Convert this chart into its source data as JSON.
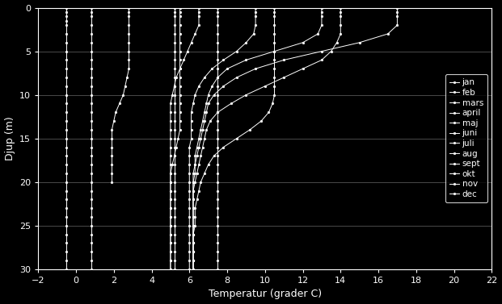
{
  "xlabel": "Temperatur (grader C)",
  "ylabel": "Djup (m)",
  "xlim": [
    -2,
    22
  ],
  "ylim": [
    30,
    0
  ],
  "xticks": [
    -2,
    0,
    2,
    4,
    6,
    8,
    10,
    12,
    14,
    16,
    18,
    20,
    22
  ],
  "yticks": [
    0,
    5,
    10,
    15,
    20,
    25,
    30
  ],
  "background_color": "#000000",
  "legend_labels": [
    "jan",
    "feb",
    "mars",
    "april",
    "maj",
    "juni",
    "juli",
    "aug",
    "sept",
    "okt",
    "nov",
    "dec"
  ],
  "months": {
    "jan": {
      "depth": [
        0,
        0.5,
        1,
        1.5,
        2,
        3,
        4,
        5,
        6,
        7,
        8,
        9,
        10,
        11,
        12,
        13,
        14,
        15,
        16,
        17,
        18,
        19,
        20,
        21,
        22,
        23,
        24,
        25,
        26,
        27,
        28,
        29,
        30
      ],
      "temp": [
        -0.5,
        -0.5,
        -0.5,
        -0.5,
        -0.5,
        -0.5,
        -0.5,
        -0.5,
        -0.5,
        -0.5,
        -0.5,
        -0.5,
        -0.5,
        -0.5,
        -0.5,
        -0.5,
        -0.5,
        -0.5,
        -0.5,
        -0.5,
        -0.5,
        -0.5,
        -0.5,
        -0.5,
        -0.5,
        -0.5,
        -0.5,
        -0.5,
        -0.5,
        -0.5,
        -0.5,
        -0.5,
        -0.5
      ]
    },
    "feb": {
      "depth": [
        0,
        0.5,
        1,
        2,
        3,
        4,
        5,
        6,
        7,
        8,
        9,
        10,
        11,
        12,
        13,
        14,
        15,
        16,
        17,
        18,
        19,
        20,
        21,
        22,
        23,
        24,
        25,
        26,
        27,
        28,
        29,
        30
      ],
      "temp": [
        0.8,
        0.8,
        0.8,
        0.8,
        0.8,
        0.8,
        0.8,
        0.8,
        0.8,
        0.8,
        0.8,
        0.8,
        0.8,
        0.8,
        0.8,
        0.8,
        0.8,
        0.8,
        0.8,
        0.8,
        0.8,
        0.8,
        0.8,
        0.8,
        0.8,
        0.8,
        0.8,
        0.8,
        0.8,
        0.8,
        0.8,
        0.8
      ]
    },
    "mars": {
      "depth": [
        0,
        0.5,
        1,
        2,
        3,
        4,
        5,
        6,
        7,
        8,
        9,
        10,
        11,
        12,
        13,
        14,
        15,
        16,
        17,
        18,
        19,
        20
      ],
      "temp": [
        2.8,
        2.8,
        2.8,
        2.8,
        2.8,
        2.8,
        2.8,
        2.8,
        2.8,
        2.7,
        2.6,
        2.5,
        2.3,
        2.1,
        2.0,
        1.9,
        1.9,
        1.9,
        1.9,
        1.9,
        1.9,
        1.9
      ]
    },
    "april": {
      "depth": [
        0,
        0.5,
        1,
        2,
        3,
        4,
        5,
        6,
        7,
        8,
        9,
        10,
        11,
        12,
        13,
        14,
        15,
        16,
        17,
        18,
        19,
        20,
        21,
        22,
        23,
        24,
        25,
        26,
        27,
        28,
        29,
        30
      ],
      "temp": [
        5.5,
        5.5,
        5.5,
        5.5,
        5.5,
        5.5,
        5.5,
        5.5,
        5.5,
        5.5,
        5.5,
        5.5,
        5.5,
        5.5,
        5.5,
        5.5,
        5.4,
        5.3,
        5.2,
        5.1,
        5.0,
        5.0,
        5.0,
        5.0,
        5.0,
        5.0,
        5.0,
        5.0,
        5.0,
        5.0,
        5.0,
        5.0
      ]
    },
    "maj": {
      "depth": [
        0,
        0.5,
        1,
        2,
        3,
        4,
        5,
        6,
        7,
        8,
        9,
        10,
        11,
        12,
        13,
        14,
        15,
        16,
        17,
        18,
        19,
        20,
        21,
        22,
        23,
        24,
        25,
        26,
        27,
        28,
        29,
        30
      ],
      "temp": [
        6.5,
        6.5,
        6.5,
        6.5,
        6.3,
        6.1,
        5.9,
        5.7,
        5.5,
        5.3,
        5.2,
        5.1,
        5.0,
        5.0,
        5.0,
        5.0,
        5.0,
        5.0,
        5.0,
        5.0,
        5.0,
        5.0,
        5.0,
        5.0,
        5.0,
        5.0,
        5.0,
        5.0,
        5.0,
        5.0,
        5.0,
        5.0
      ]
    },
    "juni": {
      "depth": [
        0,
        0.5,
        1,
        2,
        3,
        4,
        5,
        6,
        7,
        8,
        9,
        10,
        11,
        12,
        13,
        14,
        15,
        16,
        17,
        18,
        19,
        20,
        21,
        22,
        23,
        24,
        25,
        26,
        27,
        28,
        29,
        30
      ],
      "temp": [
        9.5,
        9.5,
        9.5,
        9.5,
        9.4,
        9.0,
        8.5,
        7.8,
        7.2,
        6.8,
        6.5,
        6.3,
        6.2,
        6.1,
        6.1,
        6.1,
        6.1,
        6.0,
        6.0,
        6.0,
        6.0,
        6.0,
        6.0,
        6.0,
        6.0,
        6.0,
        6.0,
        6.0,
        6.0,
        6.0,
        6.0,
        6.0
      ]
    },
    "juli": {
      "depth": [
        0,
        0.5,
        1,
        2,
        3,
        4,
        5,
        6,
        7,
        8,
        9,
        10,
        11,
        12,
        13,
        14,
        15,
        16,
        17,
        18,
        19,
        20,
        21,
        22,
        23,
        24,
        25,
        26,
        27,
        28,
        29,
        30
      ],
      "temp": [
        13.0,
        13.0,
        13.0,
        13.0,
        12.8,
        12.0,
        10.5,
        9.0,
        8.0,
        7.5,
        7.2,
        7.0,
        6.9,
        6.8,
        6.7,
        6.6,
        6.5,
        6.4,
        6.3,
        6.3,
        6.2,
        6.2,
        6.2,
        6.2,
        6.2,
        6.2,
        6.2,
        6.2,
        6.2,
        6.2,
        6.2,
        6.2
      ]
    },
    "aug": {
      "depth": [
        0,
        0.5,
        1,
        2,
        3,
        4,
        5,
        6,
        7,
        8,
        9,
        10,
        11,
        12,
        13,
        14,
        15,
        16,
        17,
        18,
        19,
        20,
        21,
        22,
        23,
        24,
        25,
        26,
        27,
        28,
        29,
        30
      ],
      "temp": [
        17.0,
        17.0,
        17.0,
        17.0,
        16.5,
        15.0,
        13.0,
        11.0,
        9.5,
        8.5,
        7.8,
        7.3,
        7.0,
        6.9,
        6.8,
        6.7,
        6.6,
        6.5,
        6.4,
        6.3,
        6.3,
        6.2,
        6.2,
        6.2,
        6.2,
        6.2,
        6.2,
        6.2,
        6.2,
        6.2,
        6.2,
        6.2
      ]
    },
    "sept": {
      "depth": [
        0,
        0.5,
        1,
        2,
        3,
        4,
        5,
        6,
        7,
        8,
        9,
        10,
        11,
        12,
        13,
        14,
        15,
        16,
        17,
        18,
        19,
        20,
        21,
        22,
        23,
        24,
        25,
        26,
        27,
        28,
        29,
        30
      ],
      "temp": [
        14.0,
        14.0,
        14.0,
        14.0,
        14.0,
        13.8,
        13.5,
        13.0,
        12.0,
        11.0,
        10.0,
        9.0,
        8.2,
        7.5,
        7.1,
        6.9,
        6.8,
        6.7,
        6.6,
        6.5,
        6.4,
        6.3,
        6.2,
        6.2,
        6.2,
        6.2,
        6.2,
        6.2,
        6.2,
        6.2,
        6.2,
        6.2
      ]
    },
    "okt": {
      "depth": [
        0,
        0.5,
        1,
        2,
        3,
        4,
        5,
        6,
        7,
        8,
        9,
        10,
        11,
        12,
        13,
        14,
        15,
        16,
        17,
        18,
        19,
        20,
        21,
        22,
        23,
        24,
        25,
        26,
        27,
        28,
        29,
        30
      ],
      "temp": [
        10.5,
        10.5,
        10.5,
        10.5,
        10.5,
        10.5,
        10.5,
        10.5,
        10.5,
        10.5,
        10.5,
        10.5,
        10.4,
        10.2,
        9.8,
        9.2,
        8.5,
        7.8,
        7.3,
        7.0,
        6.8,
        6.6,
        6.5,
        6.4,
        6.3,
        6.3,
        6.3,
        6.2,
        6.2,
        6.2,
        6.2,
        6.2
      ]
    },
    "nov": {
      "depth": [
        0,
        0.5,
        1,
        2,
        3,
        4,
        5,
        6,
        7,
        8,
        9,
        10,
        11,
        12,
        13,
        14,
        15,
        16,
        17,
        18,
        19,
        20,
        21,
        22,
        23,
        24,
        25,
        26,
        27,
        28,
        29,
        30
      ],
      "temp": [
        7.5,
        7.5,
        7.5,
        7.5,
        7.5,
        7.5,
        7.5,
        7.5,
        7.5,
        7.5,
        7.5,
        7.5,
        7.5,
        7.5,
        7.5,
        7.5,
        7.5,
        7.5,
        7.5,
        7.5,
        7.5,
        7.5,
        7.5,
        7.5,
        7.5,
        7.5,
        7.5,
        7.5,
        7.5,
        7.5,
        7.5,
        7.5
      ]
    },
    "dec": {
      "depth": [
        0,
        0.5,
        1,
        2,
        3,
        4,
        5,
        6,
        7,
        8,
        9,
        10,
        11,
        12,
        13,
        14,
        15,
        16,
        17,
        18,
        19,
        20,
        21,
        22,
        23,
        24,
        25,
        26,
        27,
        28,
        29,
        30
      ],
      "temp": [
        5.2,
        5.2,
        5.2,
        5.2,
        5.2,
        5.2,
        5.2,
        5.2,
        5.2,
        5.2,
        5.2,
        5.2,
        5.2,
        5.2,
        5.2,
        5.2,
        5.2,
        5.2,
        5.2,
        5.2,
        5.2,
        5.2,
        5.2,
        5.2,
        5.2,
        5.2,
        5.2,
        5.2,
        5.2,
        5.2,
        5.2,
        5.2
      ]
    }
  }
}
